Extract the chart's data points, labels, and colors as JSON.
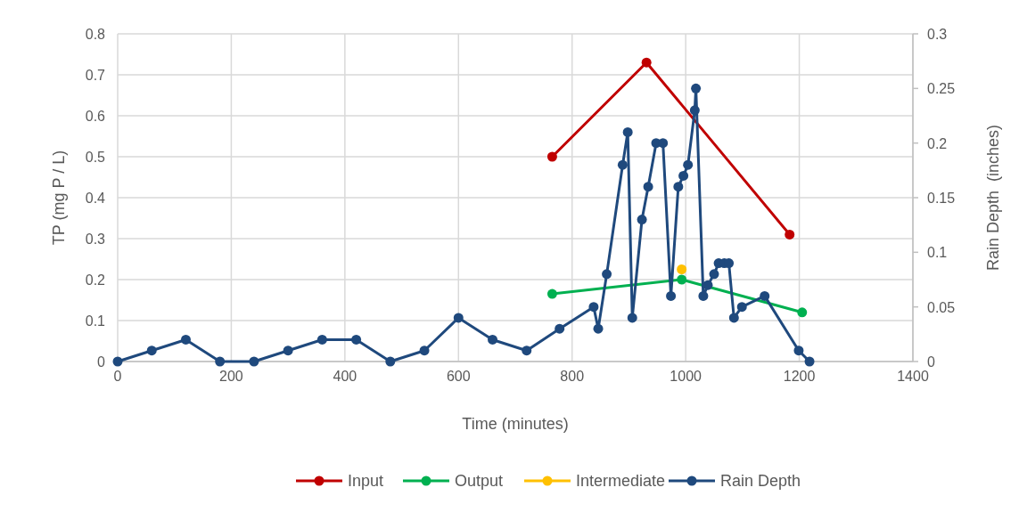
{
  "chart_data": {
    "type": "line",
    "xlabel": "Time (minutes)",
    "ylabel": "TP (mg P / L)",
    "y2label": "Rain Depth  (inches)",
    "xlim": [
      0,
      1400
    ],
    "xticks": [
      0,
      200,
      400,
      600,
      800,
      1000,
      1200,
      1400
    ],
    "ylim": [
      0,
      0.8
    ],
    "yticks": [
      0,
      0.1,
      0.2,
      0.3,
      0.4,
      0.5,
      0.6,
      0.7,
      0.8
    ],
    "y2lim": [
      0,
      0.3
    ],
    "y2ticks": [
      0,
      0.05,
      0.1,
      0.15,
      0.2,
      0.25,
      0.3
    ],
    "grid": true,
    "legend": "bottom",
    "marker": "circle",
    "series": [
      {
        "name": "Input",
        "color": "#c00000",
        "x": [
          765,
          931,
          1183
        ],
        "values": [
          0.5,
          0.73,
          0.31
        ]
      },
      {
        "name": "Output",
        "color": "#00b050",
        "x": [
          765,
          993,
          1205
        ],
        "values": [
          0.165,
          0.2,
          0.12
        ]
      },
      {
        "name": "Intermediate",
        "color": "#ffc000",
        "x": [
          993
        ],
        "values": [
          0.225
        ]
      },
      {
        "name": "Rain Depth",
        "color": "#1f497d",
        "axis": "y2",
        "x": [
          0,
          60,
          120,
          180,
          240,
          300,
          360,
          420,
          480,
          540,
          600,
          660,
          720,
          778,
          838,
          846,
          861,
          889,
          898,
          906,
          923,
          934,
          948,
          960,
          974,
          987,
          996,
          1004,
          1016,
          1018,
          1031,
          1039,
          1050,
          1058,
          1068,
          1076,
          1085,
          1099,
          1139,
          1199,
          1218
        ],
        "values": [
          0,
          0.01,
          0.02,
          0,
          0,
          0.01,
          0.02,
          0.02,
          0,
          0.01,
          0.04,
          0.02,
          0.01,
          0.03,
          0.05,
          0.03,
          0.08,
          0.18,
          0.21,
          0.04,
          0.13,
          0.16,
          0.2,
          0.2,
          0.06,
          0.16,
          0.17,
          0.18,
          0.23,
          0.25,
          0.06,
          0.07,
          0.08,
          0.09,
          0.09,
          0.09,
          0.04,
          0.05,
          0.06,
          0.01,
          0
        ]
      }
    ]
  }
}
